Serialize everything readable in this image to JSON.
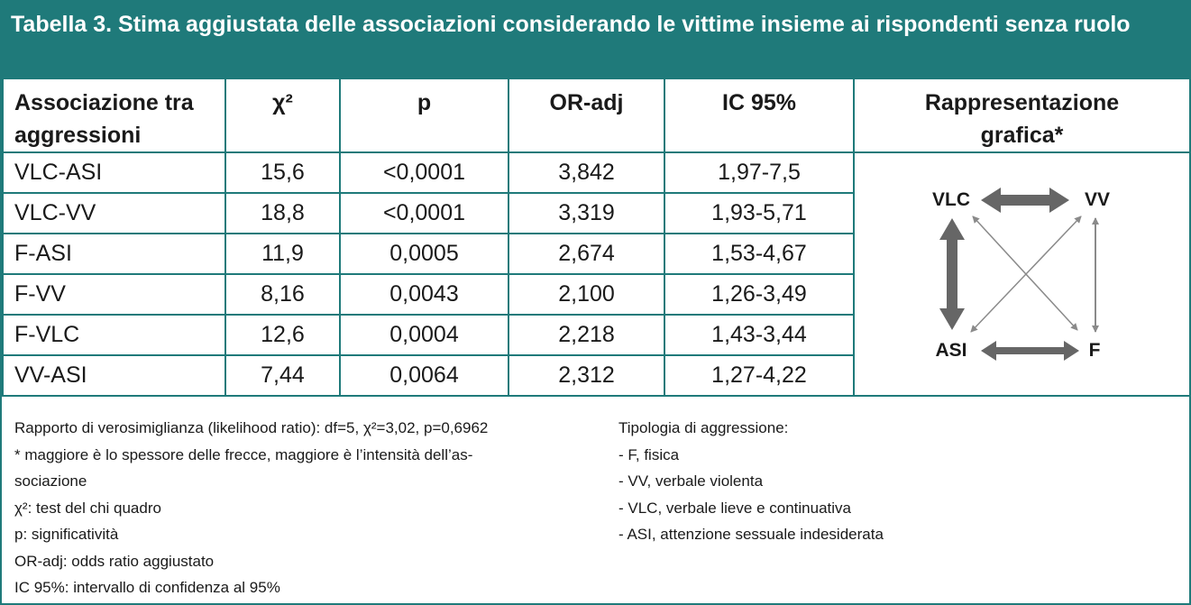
{
  "title": "Tabella 3. Stima aggiustata delle associazioni considerando le vittime insieme ai rispondenti senza ruolo",
  "table": {
    "headers": [
      "Associazione tra aggressioni",
      "χ²",
      "p",
      "OR-adj",
      "IC 95%",
      "Rappresentazione grafica*"
    ],
    "rows": [
      [
        "VLC-ASI",
        "15,6",
        "<0,0001",
        "3,842",
        "1,97-7,5"
      ],
      [
        "VLC-VV",
        "18,8",
        "<0,0001",
        "3,319",
        "1,93-5,71"
      ],
      [
        "F-ASI",
        "11,9",
        "0,0005",
        "2,674",
        "1,53-4,67"
      ],
      [
        "F-VV",
        "8,16",
        "0,0043",
        "2,100",
        "1,26-3,49"
      ],
      [
        "F-VLC",
        "12,6",
        "0,0004",
        "2,218",
        "1,43-3,44"
      ],
      [
        "VV-ASI",
        "7,44",
        "0,0064",
        "2,312",
        "1,27-4,22"
      ]
    ]
  },
  "diagram": {
    "nodes": [
      "VLC",
      "VV",
      "ASI",
      "F"
    ]
  },
  "notes_left": [
    "Rapporto di verosimiglianza (likelihood ratio): df=5, χ²=3,02, p=0,6962",
    "* maggiore è lo spessore delle frecce, maggiore è l’intensità dell’as-",
    "sociazione",
    "χ²: test del chi quadro",
    "p: significatività",
    "OR-adj: odds ratio aggiustato",
    "IC 95%: intervallo di confidenza al 95%"
  ],
  "notes_right": [
    "Tipologia di aggressione:",
    "- F, fisica",
    "- VV, verbale violenta",
    "- VLC, verbale lieve e continuativa",
    "- ASI, attenzione sessuale indesiderata"
  ],
  "colors": {
    "teal": "#1f7a7a",
    "arrow_dark": "#666666",
    "arrow_light": "#8a8a8a"
  }
}
